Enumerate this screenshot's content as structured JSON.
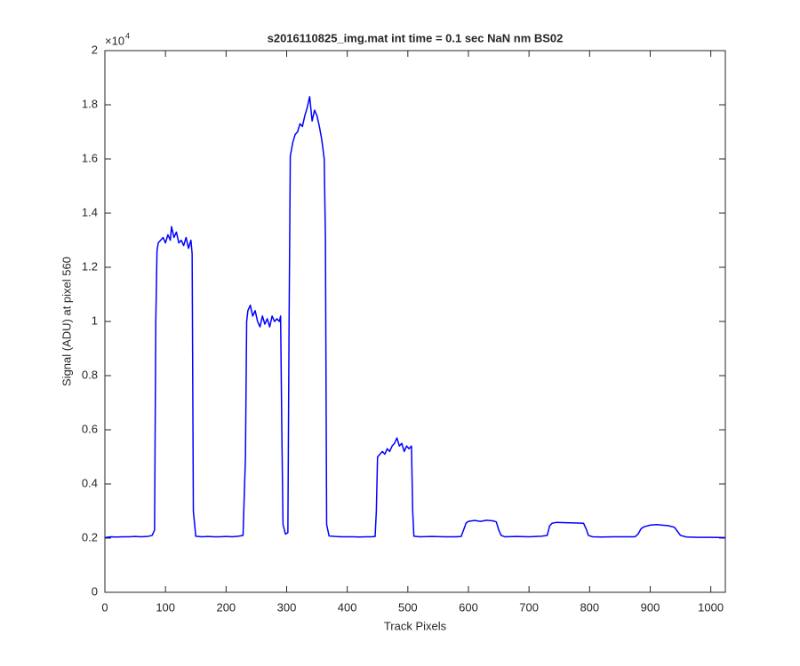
{
  "chart_data": {
    "type": "line",
    "title": "s2016110825_img.mat int time = 0.1 sec  NaN nm BS02",
    "xlabel": "Track Pixels",
    "ylabel": "Signal (ADU) at pixel 560",
    "y_exponent": {
      "base": "×10",
      "power": "4"
    },
    "xlim": [
      0,
      1024
    ],
    "ylim": [
      0,
      2
    ],
    "xticks": [
      0,
      100,
      200,
      300,
      400,
      500,
      600,
      700,
      800,
      900,
      1000
    ],
    "yticks": [
      0,
      0.2,
      0.4,
      0.6,
      0.8,
      1,
      1.2,
      1.4,
      1.6,
      1.8,
      2
    ],
    "grid": false,
    "x": [
      0,
      10,
      20,
      30,
      40,
      50,
      60,
      70,
      78,
      82,
      84,
      86,
      88,
      92,
      96,
      100,
      104,
      108,
      110,
      114,
      118,
      122,
      126,
      130,
      134,
      138,
      142,
      144,
      146,
      150,
      160,
      170,
      180,
      190,
      200,
      210,
      220,
      228,
      232,
      234,
      236,
      240,
      244,
      248,
      252,
      256,
      260,
      264,
      268,
      272,
      276,
      280,
      284,
      288,
      290,
      292,
      294,
      298,
      302,
      304,
      306,
      310,
      314,
      318,
      322,
      326,
      330,
      334,
      338,
      342,
      346,
      350,
      354,
      358,
      362,
      364,
      366,
      370,
      380,
      390,
      400,
      410,
      420,
      430,
      440,
      446,
      448,
      450,
      454,
      458,
      462,
      466,
      470,
      474,
      478,
      482,
      486,
      490,
      494,
      498,
      502,
      506,
      508,
      510,
      520,
      540,
      560,
      580,
      588,
      592,
      596,
      600,
      610,
      620,
      630,
      640,
      646,
      650,
      654,
      660,
      680,
      700,
      720,
      730,
      734,
      738,
      745,
      760,
      775,
      790,
      795,
      798,
      805,
      820,
      840,
      860,
      875,
      880,
      885,
      890,
      900,
      910,
      920,
      930,
      940,
      945,
      950,
      960,
      980,
      1000,
      1024
    ],
    "series": [
      {
        "name": "signal",
        "color": "#0000ff",
        "values": [
          0.202,
          0.205,
          0.204,
          0.205,
          0.205,
          0.206,
          0.205,
          0.206,
          0.21,
          0.23,
          1.0,
          1.26,
          1.29,
          1.3,
          1.31,
          1.29,
          1.32,
          1.3,
          1.35,
          1.31,
          1.33,
          1.29,
          1.3,
          1.28,
          1.31,
          1.27,
          1.3,
          1.25,
          0.3,
          0.207,
          0.205,
          0.206,
          0.205,
          0.205,
          0.206,
          0.205,
          0.207,
          0.21,
          0.5,
          1.0,
          1.04,
          1.06,
          1.02,
          1.04,
          1.0,
          0.98,
          1.02,
          0.99,
          1.01,
          0.98,
          1.02,
          1.0,
          1.01,
          1.0,
          1.02,
          0.6,
          0.25,
          0.215,
          0.22,
          1.0,
          1.61,
          1.66,
          1.69,
          1.7,
          1.73,
          1.72,
          1.76,
          1.79,
          1.83,
          1.74,
          1.78,
          1.76,
          1.72,
          1.67,
          1.6,
          1.3,
          0.25,
          0.208,
          0.206,
          0.205,
          0.205,
          0.205,
          0.204,
          0.205,
          0.205,
          0.206,
          0.3,
          0.5,
          0.51,
          0.52,
          0.51,
          0.53,
          0.52,
          0.54,
          0.55,
          0.57,
          0.54,
          0.55,
          0.52,
          0.54,
          0.53,
          0.54,
          0.3,
          0.207,
          0.205,
          0.206,
          0.205,
          0.205,
          0.206,
          0.23,
          0.255,
          0.262,
          0.265,
          0.262,
          0.266,
          0.264,
          0.26,
          0.23,
          0.21,
          0.205,
          0.206,
          0.205,
          0.207,
          0.21,
          0.245,
          0.255,
          0.258,
          0.257,
          0.256,
          0.255,
          0.23,
          0.21,
          0.205,
          0.204,
          0.205,
          0.205,
          0.205,
          0.215,
          0.235,
          0.242,
          0.248,
          0.25,
          0.248,
          0.246,
          0.24,
          0.225,
          0.21,
          0.204,
          0.203,
          0.203,
          0.202
        ]
      }
    ]
  }
}
